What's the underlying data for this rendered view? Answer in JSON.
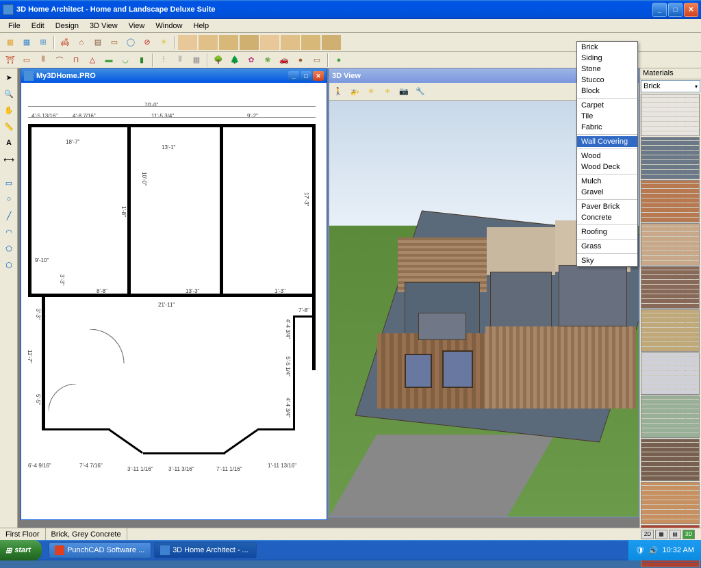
{
  "app": {
    "title": "3D Home Architect - Home and Landscape Deluxe Suite",
    "menus": [
      "File",
      "Edit",
      "Design",
      "3D View",
      "View",
      "Window",
      "Help"
    ]
  },
  "plan_window": {
    "title": "My3DHome.PRO"
  },
  "view3d_window": {
    "title": "3D View"
  },
  "materials": {
    "panel_title": "Materials",
    "selected": "Brick",
    "categories": [
      "Brick",
      "Siding",
      "Stone",
      "Stucco",
      "Block",
      "Carpet",
      "Tile",
      "Fabric",
      "Wall Covering",
      "Wood",
      "Wood Deck",
      "Mulch",
      "Gravel",
      "Paver Brick",
      "Concrete",
      "Roofing",
      "Grass",
      "Sky"
    ],
    "highlighted": "Wall Covering",
    "separators_after": [
      "Block",
      "Fabric",
      "Wall Covering",
      "Wood Deck",
      "Gravel",
      "Concrete",
      "Roofing",
      "Grass"
    ],
    "swatches": [
      "#e8e4e0",
      "#6a7888",
      "#b87850",
      "#c8a888",
      "#886858",
      "#c0a878",
      "#d0d0d8",
      "#98b098",
      "#786050",
      "#c89060",
      "#b04030"
    ]
  },
  "floorplan": {
    "dims": {
      "top_total": "70'-0\"",
      "top_a": "4'-5 13/16\"",
      "top_b": "4'-8 7/16\"",
      "top_c": "11'-5 3/4\"",
      "top_d": "9'-2\"",
      "room_a": "18'-7\"",
      "door_a": "13'-1\"",
      "v_a": "10'-0\"",
      "v_b": "1'-8\"",
      "v_c": "17'-3\"",
      "left_a": "9'-10\"",
      "mid_span": "21'-11\"",
      "left_b": "3'-3\"",
      "mid_a": "8'-8\"",
      "mid_b": "13'-3\"",
      "mid_c": "1'-3\"",
      "right_a": "7'-8\"",
      "v_d": "4'-4 3/4\"",
      "v_e": "5'-5 1/4\"",
      "v_f": "4'-4 3/4\"",
      "v_left": "11'-7\"",
      "v_left2": "3'-3\"",
      "v_left3": "5'-5\"",
      "bot_a": "6'-4 9/16\"",
      "bot_b": "7'-4 7/16\"",
      "bot_c": "3'-11 1/16\"",
      "bot_d": "3'-11 3/16\"",
      "bot_e": "7'-11 1/16\"",
      "bot_f": "1'-11 13/16\""
    }
  },
  "status": {
    "floor": "First Floor",
    "material": "Brick, Grey Concrete"
  },
  "taskbar": {
    "start": "start",
    "tasks": [
      "PunchCAD Software ...",
      "3D Home Architect - ..."
    ],
    "time": "10:32 AM"
  },
  "colors": {
    "xp_blue": "#0054e3",
    "xp_green": "#308030",
    "workspace": "#7b7b7b",
    "chrome": "#ece9d8"
  }
}
